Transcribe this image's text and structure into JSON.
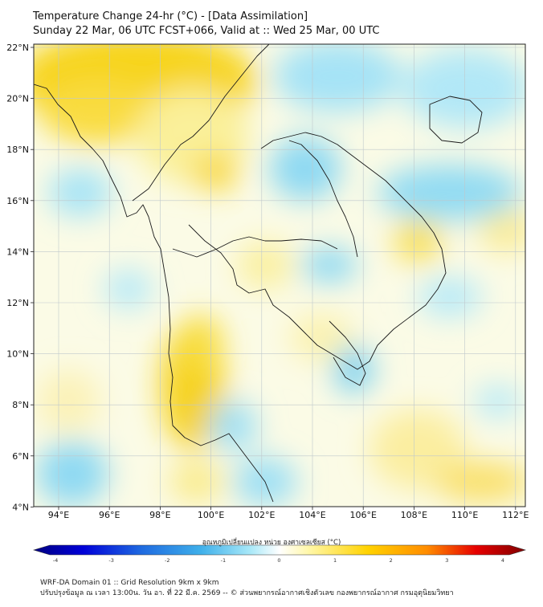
{
  "header": {
    "title": "Temperature Change 24-hr (°C) - [Data Assimilation]",
    "subtitle": "Sunday 22 Mar, 06 UTC FCST+066, Valid at :: Wed 25 Mar, 00 UTC"
  },
  "map": {
    "lon_ticks": [
      "94°E",
      "96°E",
      "98°E",
      "100°E",
      "102°E",
      "104°E",
      "106°E",
      "108°E",
      "110°E",
      "112°E"
    ],
    "lat_ticks": [
      "22°N",
      "20°N",
      "18°N",
      "16°N",
      "14°N",
      "12°N",
      "10°N",
      "8°N",
      "6°N",
      "4°N"
    ]
  },
  "colorbar": {
    "label": "อุณหภูมิเปลี่ยนแปลง หน่วย องศาเซลเซียส (°C)",
    "ticks": [
      "-4",
      "-3",
      "-2",
      "-1",
      "0",
      "1",
      "2",
      "3",
      "4"
    ],
    "colors": [
      "#000080",
      "#0000d8",
      "#1f6be0",
      "#3fb0ea",
      "#8fe0f6",
      "#ffffff",
      "#fff7a8",
      "#ffd200",
      "#ff8c00",
      "#e60000",
      "#800000"
    ]
  },
  "footer": {
    "line1": "WRF-DA Domain 01 :: Grid Resolution 9km x 9km",
    "line2": "ปรับปรุงข้อมูล ณ เวลา 13:00น. วัน อา. ที่ 22 มี.ค. 2569 -- © ส่วนพยากรณ์อากาศเชิงตัวเลข กองพยากรณ์อากาศ กรมอุตุนิยมวิทยา"
  }
}
